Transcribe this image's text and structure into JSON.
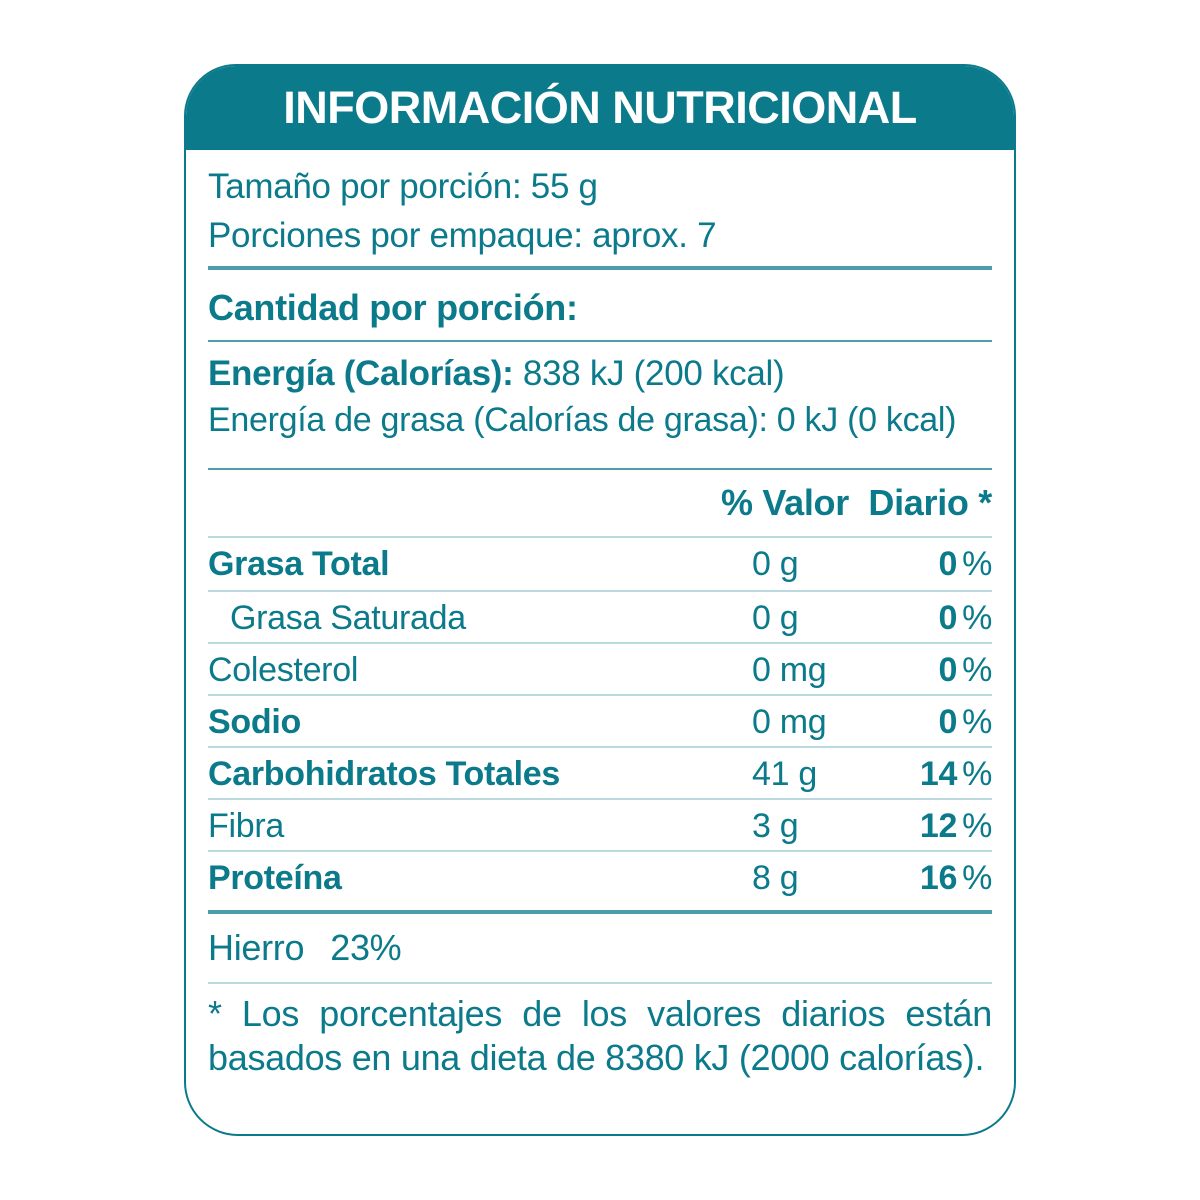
{
  "colors": {
    "teal": "#0b7a8b",
    "rule_medium": "#4e9dab",
    "rule_light": "#bcd9df",
    "header_text": "#ffffff"
  },
  "header": {
    "title": "INFORMACIÓN NUTRICIONAL"
  },
  "serving": {
    "size_line": "Tamaño por porción: 55 g",
    "per_pack_line": "Porciones por empaque: aprox. 7"
  },
  "sections": {
    "amount_per_serving": "Cantidad por porción:"
  },
  "energy": {
    "label": "Energía (Calorías):",
    "value": " 838 kJ (200 kcal)",
    "fat_line": "Energía de grasa (Calorías de grasa): 0 kJ (0 kcal)"
  },
  "daily_value_header": "% Valor  Diario *",
  "units": {
    "percent": "%"
  },
  "nutrients": [
    {
      "label": "Grasa Total",
      "amount": "0 g",
      "dv": "0"
    },
    {
      "label": "Grasa Saturada",
      "amount": "0 g",
      "dv": "0"
    },
    {
      "label": "Colesterol",
      "amount": "0 mg",
      "dv": "0"
    },
    {
      "label": "Sodio",
      "amount": "0 mg",
      "dv": "0"
    },
    {
      "label": "Carbohidratos Totales",
      "amount": "41 g",
      "dv": "14"
    },
    {
      "label": "Fibra",
      "amount": "3 g",
      "dv": "12"
    },
    {
      "label": "Proteína",
      "amount": "8 g",
      "dv": "16"
    }
  ],
  "minerals": {
    "label": "Hierro",
    "value": "23%"
  },
  "footnote": "* Los porcentajes de los valores diarios están basados en una dieta de 8380 kJ (2000 calorías)."
}
